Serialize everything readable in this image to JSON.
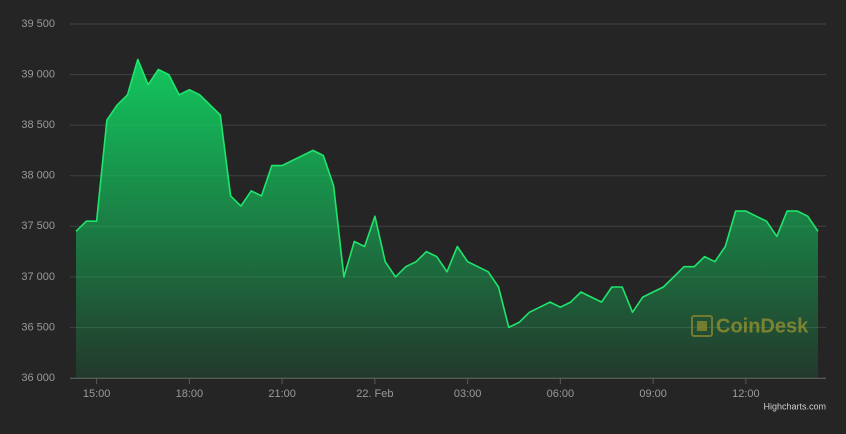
{
  "chart_data": {
    "type": "area",
    "color": "#1ee66c",
    "categories": [
      null,
      null,
      "15:00",
      null,
      null,
      null,
      null,
      null,
      null,
      null,
      null,
      "18:00",
      null,
      null,
      null,
      null,
      null,
      null,
      null,
      null,
      "21:00",
      null,
      null,
      null,
      null,
      null,
      null,
      null,
      null,
      "22. Feb",
      null,
      null,
      null,
      null,
      null,
      null,
      null,
      null,
      "03:00",
      null,
      null,
      null,
      null,
      null,
      null,
      null,
      null,
      "06:00",
      null,
      null,
      null,
      null,
      null,
      null,
      null,
      null,
      "09:00",
      null,
      null,
      null,
      null,
      null,
      null,
      null,
      null,
      "12:00",
      null,
      null,
      null,
      null,
      null,
      null,
      null
    ],
    "values": [
      37450,
      37550,
      37550,
      38550,
      38700,
      38800,
      39150,
      38900,
      39050,
      39000,
      38800,
      38850,
      38800,
      38700,
      38600,
      37800,
      37700,
      37850,
      37800,
      38100,
      38100,
      38150,
      38200,
      38250,
      38200,
      37900,
      37000,
      37350,
      37300,
      37600,
      37150,
      37000,
      37100,
      37150,
      37250,
      37200,
      37050,
      37300,
      37150,
      37100,
      37050,
      36900,
      36500,
      36550,
      36650,
      36700,
      36750,
      36700,
      36750,
      36850,
      36800,
      36750,
      36900,
      36900,
      36650,
      36800,
      36850,
      36900,
      37000,
      37100,
      37100,
      37200,
      37150,
      37300,
      37650,
      37650,
      37600,
      37550,
      37400,
      37650,
      37650,
      37600,
      37450
    ],
    "ylim": [
      36000,
      39500
    ],
    "yticks": [
      {
        "value": 36000,
        "label": "36 000"
      },
      {
        "value": 36500,
        "label": "36 500"
      },
      {
        "value": 37000,
        "label": "37 000"
      },
      {
        "value": 37500,
        "label": "37 500"
      },
      {
        "value": 38000,
        "label": "38 000"
      },
      {
        "value": 38500,
        "label": "38 500"
      },
      {
        "value": 39000,
        "label": "39 000"
      },
      {
        "value": 39500,
        "label": "39 500"
      }
    ],
    "grid": true,
    "watermark": "CoinDesk",
    "credits": "Highcharts.com"
  }
}
